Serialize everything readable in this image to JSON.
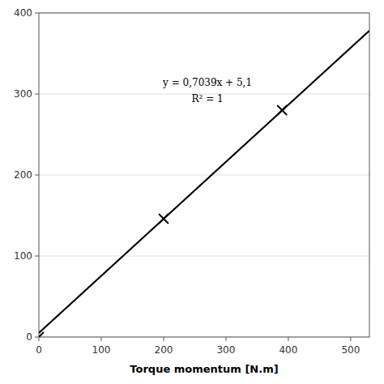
{
  "chart_data": {
    "type": "scatter",
    "x_label": "Torque momentum [N.m]",
    "annotations": [
      "y = 0,7039x + 5,1",
      "R² = 1"
    ],
    "series": [
      {
        "type": "line",
        "color": "#000000",
        "x": [
          0,
          530
        ],
        "values": [
          5.1,
          378.167
        ]
      },
      {
        "type": "scatter",
        "color": "#000000",
        "marker": "x",
        "x": [
          0,
          200,
          390
        ],
        "values": [
          0,
          146,
          280
        ]
      }
    ],
    "xlim": [
      0,
      530
    ],
    "ylim": [
      0,
      400
    ],
    "xticks": [
      0,
      100,
      200,
      300,
      400,
      500
    ],
    "yticks": [
      0,
      100,
      200,
      300,
      400
    ],
    "grid": "y"
  }
}
